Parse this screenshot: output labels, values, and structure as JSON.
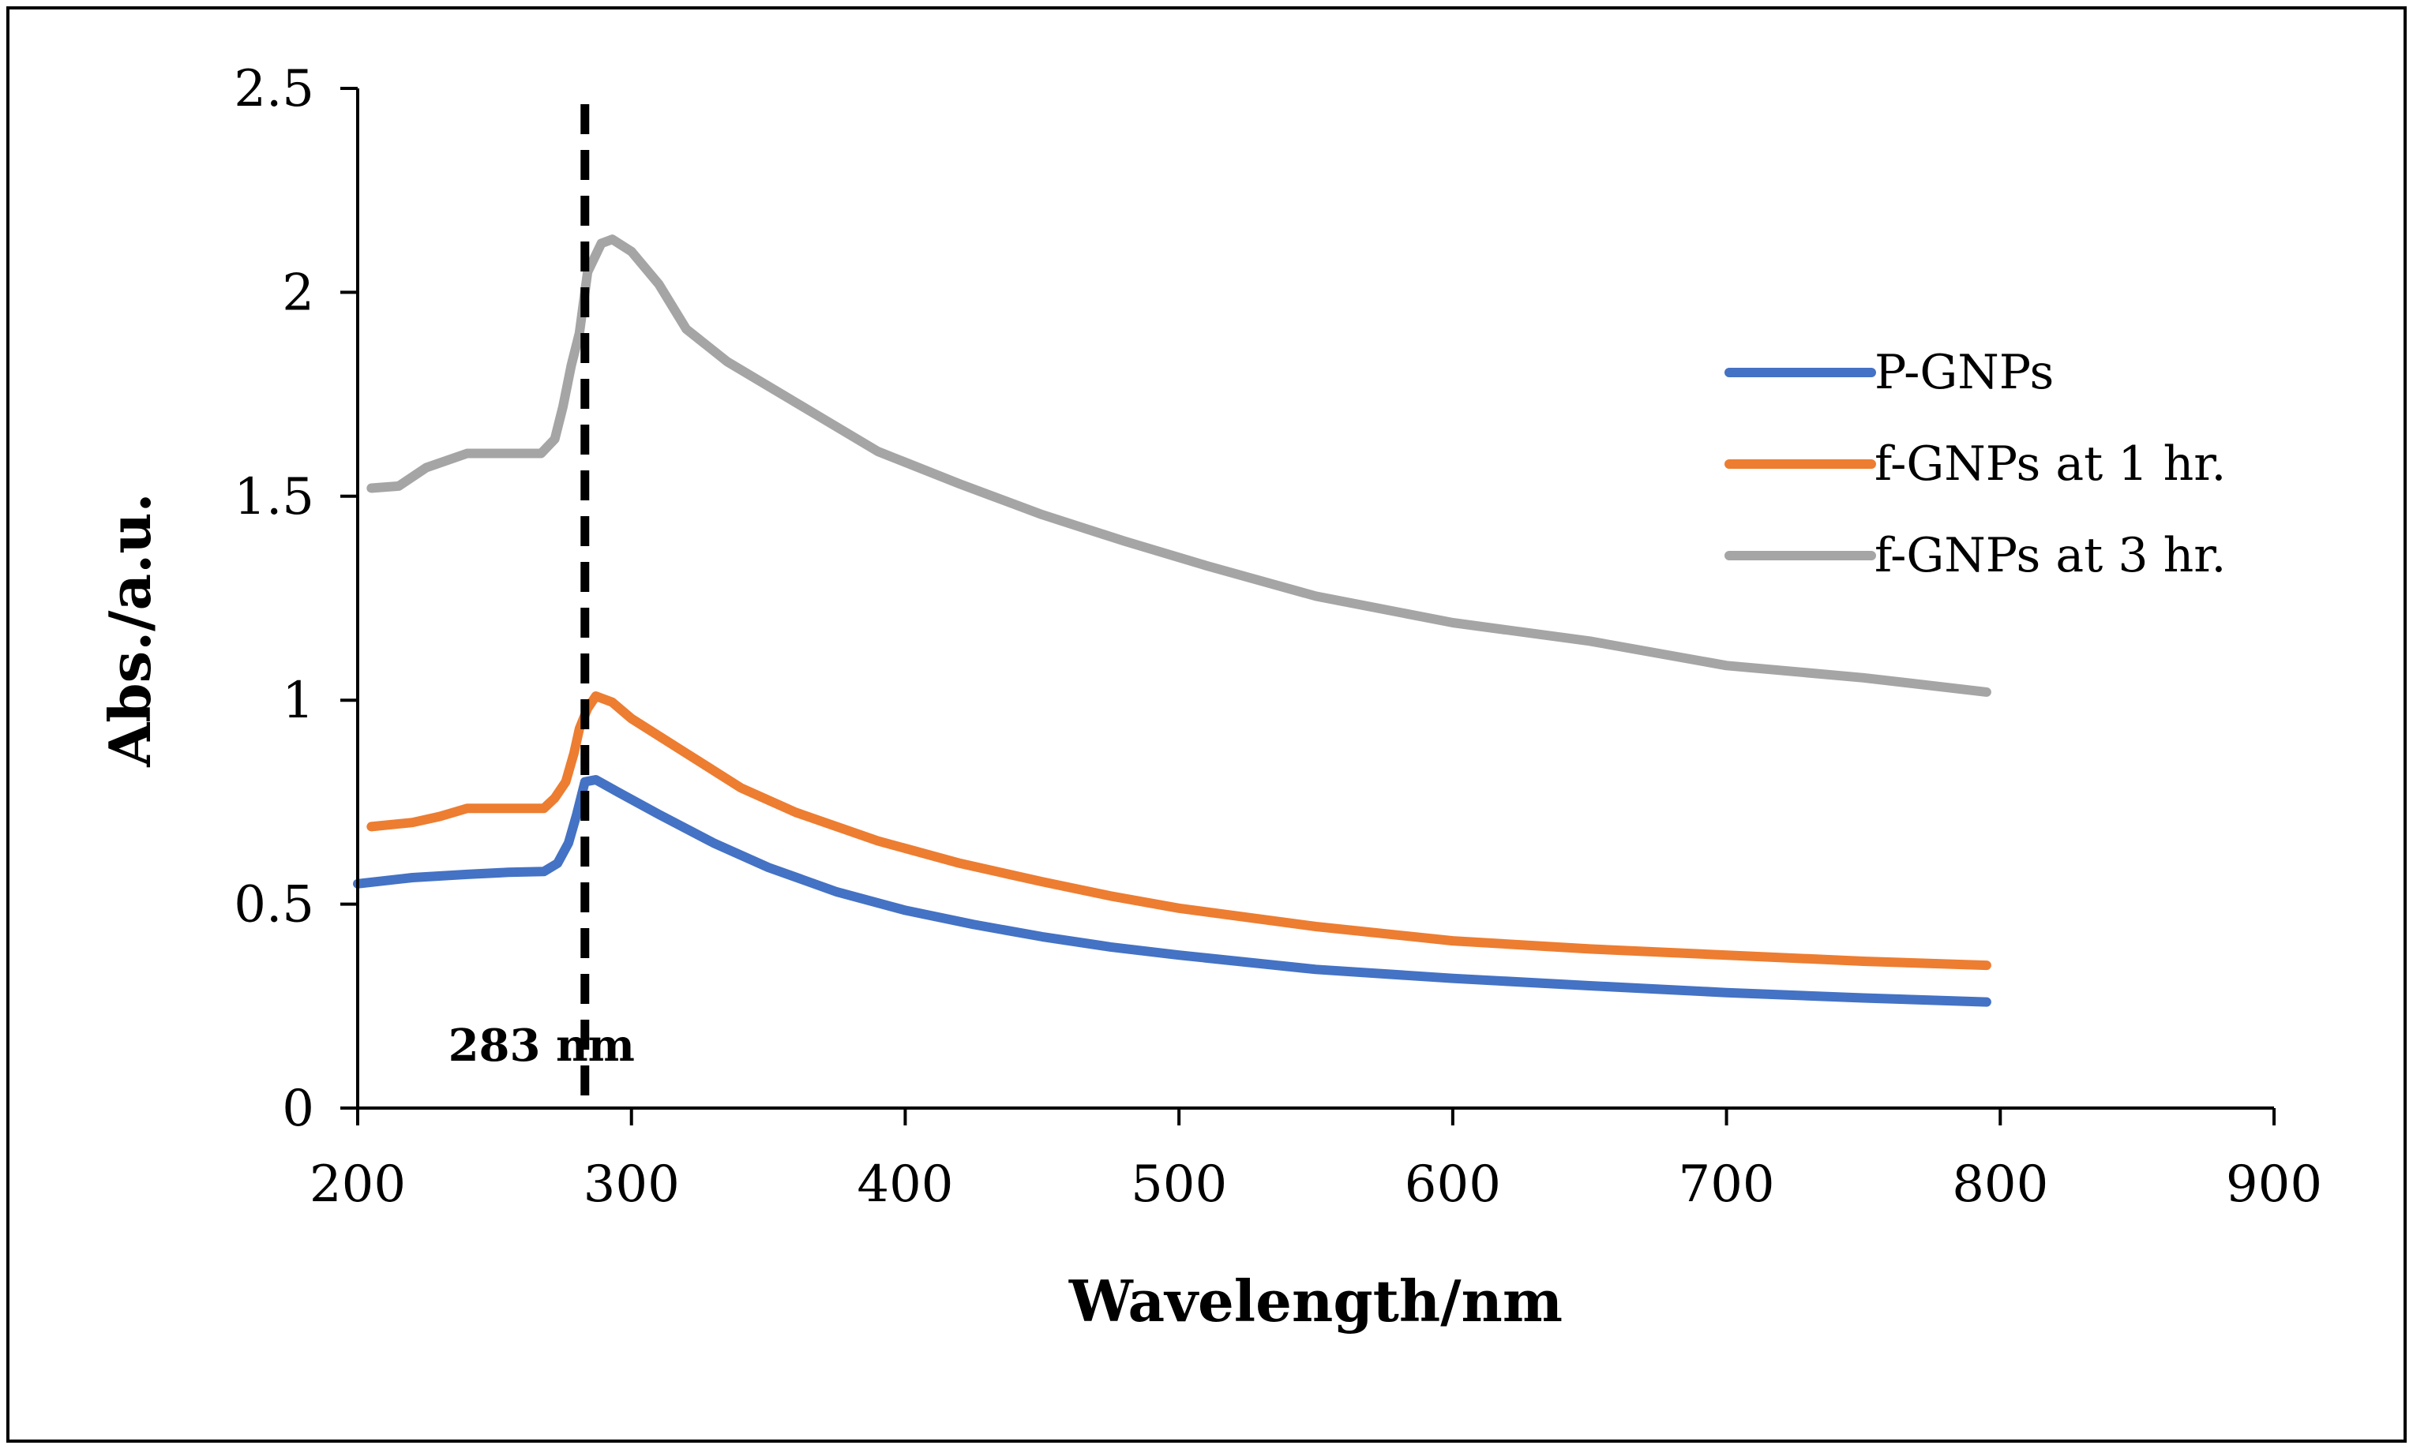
{
  "chart_data": {
    "type": "line",
    "title": "",
    "xlabel": "Wavelength/nm",
    "ylabel": "Abs./a.u.",
    "xlim": [
      200,
      900
    ],
    "ylim": [
      0,
      2.5
    ],
    "xticks": [
      "200",
      "300",
      "400",
      "500",
      "600",
      "700",
      "800",
      "900"
    ],
    "yticks": [
      "0",
      "0.5",
      "1",
      "1.5",
      "2",
      "2.5"
    ],
    "xtick_values": [
      200,
      300,
      400,
      500,
      600,
      700,
      800,
      900
    ],
    "ytick_values": [
      0,
      0.5,
      1,
      1.5,
      2,
      2.5
    ],
    "legend_position": "right",
    "grid": false,
    "annotation": {
      "text": "283 nm",
      "x": 283
    },
    "series": [
      {
        "name": "P-GNPs",
        "color": "#4472C4",
        "points": [
          [
            200,
            0.55
          ],
          [
            220,
            0.565
          ],
          [
            240,
            0.573
          ],
          [
            255,
            0.578
          ],
          [
            268,
            0.58
          ],
          [
            273,
            0.6
          ],
          [
            277,
            0.65
          ],
          [
            280,
            0.72
          ],
          [
            283,
            0.8
          ],
          [
            287,
            0.805
          ],
          [
            295,
            0.775
          ],
          [
            310,
            0.72
          ],
          [
            330,
            0.65
          ],
          [
            350,
            0.59
          ],
          [
            375,
            0.53
          ],
          [
            400,
            0.485
          ],
          [
            425,
            0.45
          ],
          [
            450,
            0.42
          ],
          [
            475,
            0.395
          ],
          [
            500,
            0.375
          ],
          [
            550,
            0.34
          ],
          [
            600,
            0.318
          ],
          [
            650,
            0.3
          ],
          [
            700,
            0.283
          ],
          [
            750,
            0.27
          ],
          [
            795,
            0.26
          ]
        ]
      },
      {
        "name": "f-GNPs at 1 hr.",
        "color": "#ED7D31",
        "points": [
          [
            205,
            0.69
          ],
          [
            220,
            0.7
          ],
          [
            230,
            0.715
          ],
          [
            240,
            0.735
          ],
          [
            255,
            0.735
          ],
          [
            268,
            0.735
          ],
          [
            272,
            0.76
          ],
          [
            276,
            0.8
          ],
          [
            279,
            0.87
          ],
          [
            281,
            0.93
          ],
          [
            284,
            0.98
          ],
          [
            287,
            1.01
          ],
          [
            293,
            0.995
          ],
          [
            300,
            0.955
          ],
          [
            320,
            0.87
          ],
          [
            340,
            0.785
          ],
          [
            360,
            0.725
          ],
          [
            390,
            0.655
          ],
          [
            420,
            0.6
          ],
          [
            450,
            0.555
          ],
          [
            475,
            0.52
          ],
          [
            500,
            0.49
          ],
          [
            550,
            0.445
          ],
          [
            600,
            0.41
          ],
          [
            650,
            0.39
          ],
          [
            700,
            0.375
          ],
          [
            750,
            0.36
          ],
          [
            795,
            0.35
          ]
        ]
      },
      {
        "name": "f-GNPs at 3 hr.",
        "color": "#A5A5A5",
        "points": [
          [
            205,
            1.52
          ],
          [
            215,
            1.525
          ],
          [
            225,
            1.57
          ],
          [
            240,
            1.605
          ],
          [
            255,
            1.605
          ],
          [
            267,
            1.605
          ],
          [
            272,
            1.64
          ],
          [
            275,
            1.72
          ],
          [
            278,
            1.82
          ],
          [
            281,
            1.9
          ],
          [
            284,
            2.05
          ],
          [
            289,
            2.12
          ],
          [
            293,
            2.13
          ],
          [
            300,
            2.1
          ],
          [
            310,
            2.02
          ],
          [
            320,
            1.91
          ],
          [
            335,
            1.83
          ],
          [
            350,
            1.77
          ],
          [
            370,
            1.69
          ],
          [
            390,
            1.61
          ],
          [
            420,
            1.53
          ],
          [
            450,
            1.455
          ],
          [
            480,
            1.39
          ],
          [
            510,
            1.33
          ],
          [
            550,
            1.255
          ],
          [
            600,
            1.19
          ],
          [
            650,
            1.145
          ],
          [
            700,
            1.085
          ],
          [
            750,
            1.055
          ],
          [
            795,
            1.02
          ]
        ]
      }
    ]
  }
}
